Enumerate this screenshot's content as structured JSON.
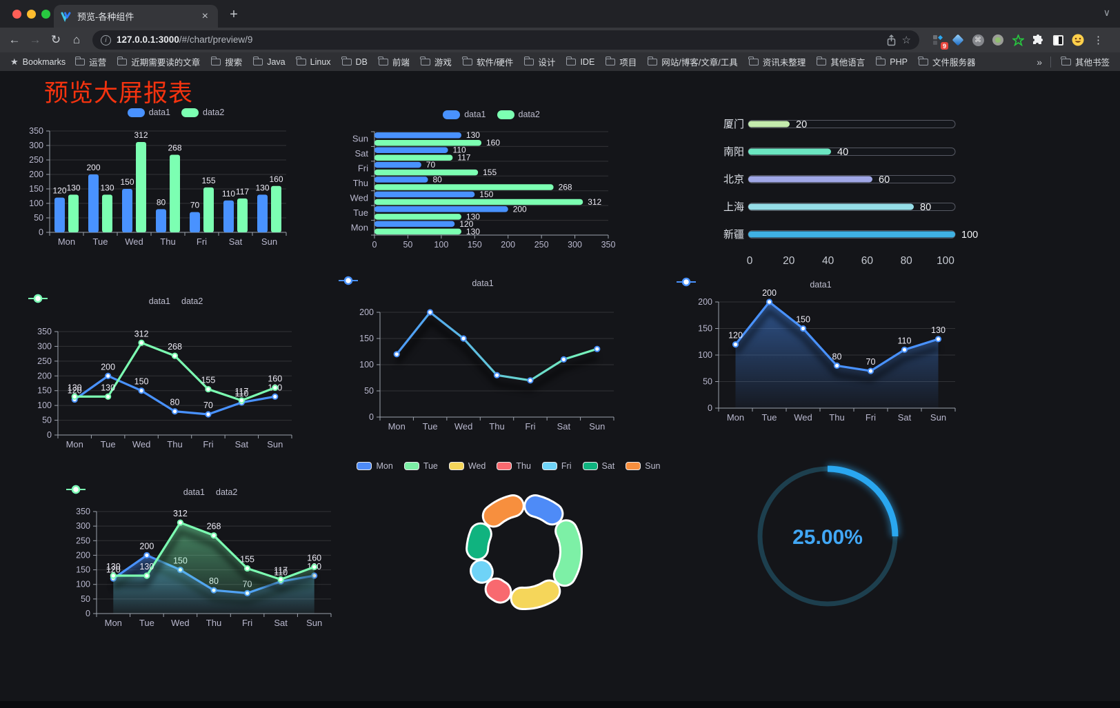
{
  "browser": {
    "tab": {
      "title": "预览-各种组件"
    },
    "url": {
      "host": "127.0.0.1:3000",
      "path": "/#/chart/preview/9"
    },
    "icons": {
      "back": "←",
      "forward": "→",
      "reload": "↻",
      "home": "⌂",
      "info": "i",
      "star": "☆",
      "menu": "⋮",
      "close": "×",
      "new_tab": "+",
      "chevron_down": "∨",
      "bookmarks_star": "★",
      "overflow": "»",
      "cmd": "⌘"
    },
    "extension_badge": "9",
    "bookmarks_label": "Bookmarks",
    "bookmarks": [
      "运营",
      "近期需要读的文章",
      "搜索",
      "Java",
      "Linux",
      "DB",
      "前端",
      "游戏",
      "软件/硬件",
      "设计",
      "IDE",
      "项目",
      "网站/博客/文章/工具",
      "资讯未整理",
      "其他语言",
      "PHP",
      "文件服务器"
    ],
    "other_bookmarks": "其他书签"
  },
  "page": {
    "title": "预览大屏报表",
    "title_color": "#f5330f",
    "background": "#141519"
  },
  "chart_data": [
    {
      "id": "bar-vertical",
      "type": "bar",
      "categories": [
        "Mon",
        "Tue",
        "Wed",
        "Thu",
        "Fri",
        "Sat",
        "Sun"
      ],
      "series": [
        {
          "name": "data1",
          "color": "#4992ff",
          "values": [
            120,
            200,
            150,
            80,
            70,
            110,
            130
          ]
        },
        {
          "name": "data2",
          "color": "#7cffb2",
          "values": [
            130,
            130,
            312,
            268,
            155,
            117,
            160
          ]
        }
      ],
      "ylim": [
        0,
        350
      ],
      "ytick": 50,
      "labels": true,
      "legend_pos": "top",
      "grid": true
    },
    {
      "id": "bar-horizontal",
      "type": "bar-h",
      "categories": [
        "Mon",
        "Tue",
        "Wed",
        "Thu",
        "Fri",
        "Sat",
        "Sun"
      ],
      "series": [
        {
          "name": "data1",
          "color": "#4992ff",
          "values": [
            120,
            200,
            150,
            80,
            70,
            110,
            130
          ]
        },
        {
          "name": "data2",
          "color": "#7cffb2",
          "values": [
            130,
            130,
            312,
            268,
            155,
            117,
            160
          ]
        }
      ],
      "xlim": [
        0,
        350
      ],
      "xtick": 50,
      "labels": true,
      "legend_pos": "top",
      "grid": true
    },
    {
      "id": "city-progress",
      "type": "progress",
      "xlim": [
        0,
        100
      ],
      "xticks": [
        0,
        20,
        40,
        60,
        80,
        100
      ],
      "rows": [
        {
          "label": "厦门",
          "value": 20,
          "color": "#c4ebad"
        },
        {
          "label": "南阳",
          "value": 40,
          "color": "#6be6c1"
        },
        {
          "label": "北京",
          "value": 60,
          "color": "#a0a7e6"
        },
        {
          "label": "上海",
          "value": 80,
          "color": "#96dee8"
        },
        {
          "label": "新疆",
          "value": 100,
          "color": "#3fb1e3"
        }
      ]
    },
    {
      "id": "line-plain",
      "type": "line",
      "categories": [
        "Mon",
        "Tue",
        "Wed",
        "Thu",
        "Fri",
        "Sat",
        "Sun"
      ],
      "series": [
        {
          "name": "data1",
          "color": "#4992ff",
          "values": [
            120,
            200,
            150,
            80,
            70,
            110,
            130
          ]
        },
        {
          "name": "data2",
          "color": "#7cffb2",
          "values": [
            130,
            130,
            312,
            268,
            155,
            117,
            160
          ]
        }
      ],
      "ylim": [
        0,
        350
      ],
      "ytick": 50,
      "labels": true,
      "legend_pos": "top",
      "grid": true
    },
    {
      "id": "line-gradient",
      "type": "line",
      "categories": [
        "Mon",
        "Tue",
        "Wed",
        "Thu",
        "Fri",
        "Sat",
        "Sun"
      ],
      "series": [
        {
          "name": "data1",
          "color": "#4992ff",
          "color2": "#7cffb2",
          "values": [
            120,
            200,
            150,
            80,
            70,
            110,
            130
          ]
        }
      ],
      "ylim": [
        0,
        200
      ],
      "ytick": 50,
      "labels": false,
      "shadow": true,
      "legend_pos": "top",
      "grid": true
    },
    {
      "id": "line-area-single",
      "type": "line",
      "categories": [
        "Mon",
        "Tue",
        "Wed",
        "Thu",
        "Fri",
        "Sat",
        "Sun"
      ],
      "series": [
        {
          "name": "data1",
          "color": "#4992ff",
          "area": true,
          "values": [
            120,
            200,
            150,
            80,
            70,
            110,
            130
          ]
        }
      ],
      "ylim": [
        0,
        200
      ],
      "ytick": 50,
      "labels": true,
      "shadow": true,
      "legend_pos": "top",
      "grid": true
    },
    {
      "id": "line-area-double",
      "type": "line",
      "categories": [
        "Mon",
        "Tue",
        "Wed",
        "Thu",
        "Fri",
        "Sat",
        "Sun"
      ],
      "series": [
        {
          "name": "data1",
          "color": "#4992ff",
          "area": true,
          "values": [
            120,
            200,
            150,
            80,
            70,
            110,
            130
          ]
        },
        {
          "name": "data2",
          "color": "#7cffb2",
          "area": true,
          "values": [
            130,
            130,
            312,
            268,
            155,
            117,
            160
          ]
        }
      ],
      "ylim": [
        0,
        350
      ],
      "ytick": 50,
      "labels": true,
      "shadow": true,
      "legend_pos": "top",
      "grid": true
    },
    {
      "id": "week-donut",
      "type": "pie",
      "slices": [
        {
          "label": "Mon",
          "value": 120,
          "color": "#4e8bf7"
        },
        {
          "label": "Tue",
          "value": 200,
          "color": "#7df0a6"
        },
        {
          "label": "Wed",
          "value": 150,
          "color": "#f5d65a"
        },
        {
          "label": "Thu",
          "value": 80,
          "color": "#f8696f"
        },
        {
          "label": "Fri",
          "value": 70,
          "color": "#6fd3f7"
        },
        {
          "label": "Sat",
          "value": 110,
          "color": "#10b37f"
        },
        {
          "label": "Sun",
          "value": 130,
          "color": "#f78f3e"
        }
      ],
      "legend_pos": "top"
    },
    {
      "id": "gauge",
      "type": "gauge",
      "value": 25,
      "label": "25.00%",
      "color": "#2aa7f0",
      "track": "#1d3f4e",
      "text_color": "#41a7f5"
    }
  ]
}
